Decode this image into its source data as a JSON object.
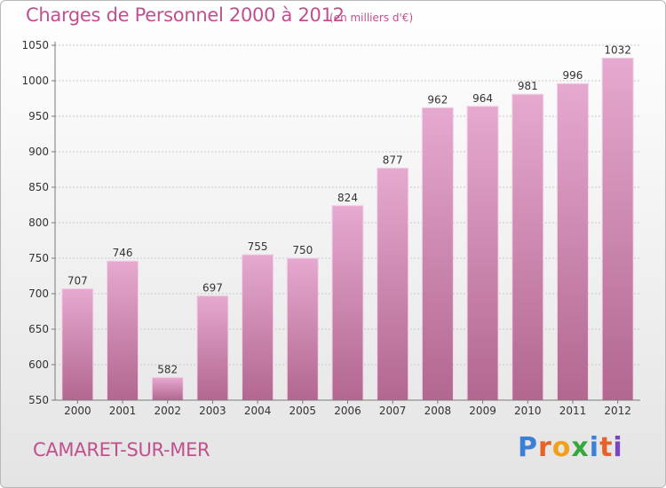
{
  "header": {
    "title": "Charges de Personnel 2000 à 2012",
    "subtitle": "(en milliers d'€)"
  },
  "footer": {
    "city": "CAMARET-SUR-MER",
    "logo_text": "Proxiti"
  },
  "colors": {
    "title": "#c0508e",
    "bar_top": "#e6a9d0",
    "bar_bottom": "#b2678f",
    "bar_edge": "#f3d3e6",
    "grid": "#c8c8c8",
    "axis": "#7a7a7a",
    "text": "#333333",
    "logo": [
      "#3b7fd6",
      "#e5632a",
      "#f2a01a",
      "#3aa640",
      "#3b7fd6",
      "#e5632a",
      "#7a44c4"
    ]
  },
  "chart_data": {
    "type": "bar",
    "title": "Charges de Personnel 2000 à 2012",
    "subtitle": "(en milliers d'€)",
    "categories": [
      "2000",
      "2001",
      "2002",
      "2003",
      "2004",
      "2005",
      "2006",
      "2007",
      "2008",
      "2009",
      "2010",
      "2011",
      "2012"
    ],
    "values": [
      707,
      746,
      582,
      697,
      755,
      750,
      824,
      877,
      962,
      964,
      981,
      996,
      1032
    ],
    "ylim": [
      550,
      1050
    ],
    "yticks": [
      550,
      600,
      650,
      700,
      750,
      800,
      850,
      900,
      950,
      1000,
      1050
    ],
    "grid": "horizontal",
    "xlabel": "",
    "ylabel": ""
  }
}
